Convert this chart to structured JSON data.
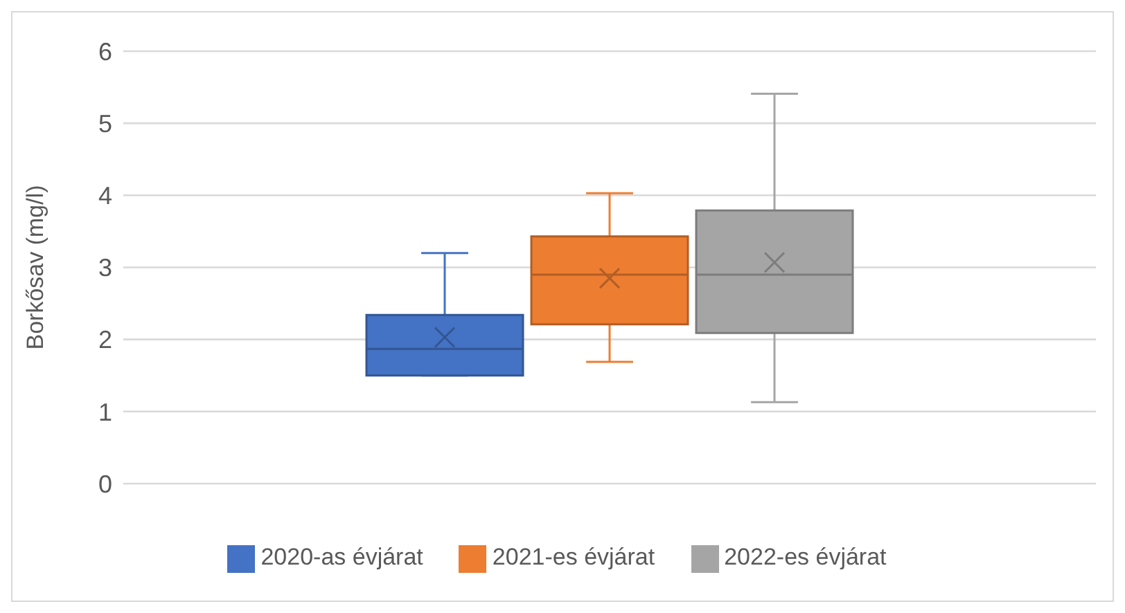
{
  "chart_data": {
    "type": "box",
    "ylabel": "Borkősav (mg/l)",
    "categories": [
      null
    ],
    "series": [
      {
        "name": "2020-as évjárat",
        "color": "#4472c4",
        "boxes": [
          {
            "low": 1.5,
            "q1": 1.5,
            "median": 1.87,
            "q3": 2.34,
            "high": 3.2,
            "mean": 2.03
          }
        ]
      },
      {
        "name": "2021-es évjárat",
        "color": "#ed7d31",
        "boxes": [
          {
            "low": 1.69,
            "q1": 2.21,
            "median": 2.9,
            "q3": 3.43,
            "high": 4.03,
            "mean": 2.85
          }
        ]
      },
      {
        "name": "2022-es évjárat",
        "color": "#a5a5a5",
        "boxes": [
          {
            "low": 1.13,
            "q1": 2.09,
            "median": 2.9,
            "q3": 3.79,
            "high": 5.41,
            "mean": 3.07
          }
        ]
      }
    ],
    "ylim": [
      0,
      6
    ],
    "yticks": [
      0,
      1,
      2,
      3,
      4,
      5,
      6
    ],
    "grid": "y",
    "legend": "bottom"
  }
}
